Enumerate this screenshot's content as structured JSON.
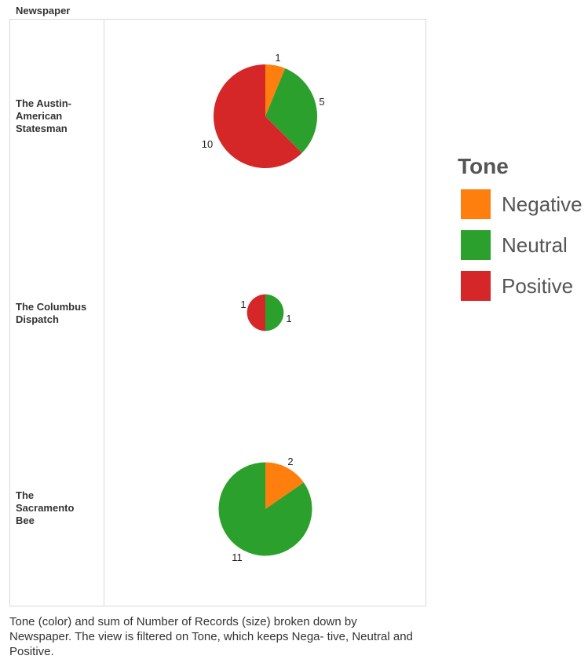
{
  "header": {
    "column_title": "Newspaper"
  },
  "colors": {
    "Negative": "#ff7f0e",
    "Neutral": "#2ca02c",
    "Positive": "#d62728"
  },
  "rows": [
    {
      "label_lines": [
        "The Austin-",
        "American",
        "Statesman"
      ]
    },
    {
      "label_lines": [
        "The Columbus",
        "Dispatch"
      ]
    },
    {
      "label_lines": [
        "The",
        "Sacramento",
        "Bee"
      ]
    }
  ],
  "legend": {
    "title": "Tone",
    "items": [
      {
        "label": "Negative",
        "color": "#ff7f0e"
      },
      {
        "label": "Neutral",
        "color": "#2ca02c"
      },
      {
        "label": "Positive",
        "color": "#d62728"
      }
    ]
  },
  "caption": "Tone (color) and sum of Number of Records (size) broken down by Newspaper. The view is filtered on Tone, which keeps Nega- tive, Neutral and Positive.",
  "chart_data": {
    "type": "pie",
    "encoding": "pie size = sum of Number of Records",
    "pies": [
      {
        "category": "The Austin-American Statesman",
        "slices": [
          {
            "tone": "Negative",
            "value": 1
          },
          {
            "tone": "Neutral",
            "value": 5
          },
          {
            "tone": "Positive",
            "value": 10
          }
        ]
      },
      {
        "category": "The Columbus Dispatch",
        "slices": [
          {
            "tone": "Neutral",
            "value": 1
          },
          {
            "tone": "Positive",
            "value": 1
          }
        ]
      },
      {
        "category": "The Sacramento Bee",
        "slices": [
          {
            "tone": "Negative",
            "value": 2
          },
          {
            "tone": "Neutral",
            "value": 11
          }
        ]
      }
    ]
  }
}
